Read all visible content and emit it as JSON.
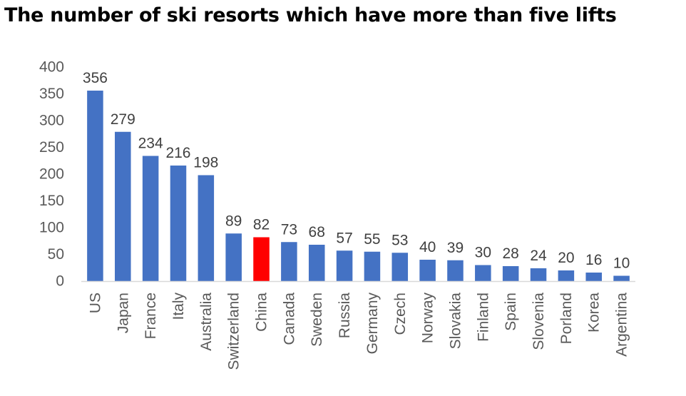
{
  "chart_data": {
    "type": "bar",
    "title": "The number of ski resorts which have more than five lifts",
    "xlabel": "",
    "ylabel": "",
    "categories": [
      "US",
      "Japan",
      "France",
      "Italy",
      "Australia",
      "Switzerland",
      "China",
      "Canada",
      "Sweden",
      "Russia",
      "Germany",
      "Czech",
      "Norway",
      "Slovakia",
      "Finland",
      "Spain",
      "Slovenia",
      "Porland",
      "Korea",
      "Argentina"
    ],
    "values": [
      356,
      279,
      234,
      216,
      198,
      89,
      82,
      73,
      68,
      57,
      55,
      53,
      40,
      39,
      30,
      28,
      24,
      20,
      16,
      10
    ],
    "ylim": [
      0,
      400
    ],
    "yticks": [
      0,
      50,
      100,
      150,
      200,
      250,
      300,
      350,
      400
    ],
    "grid": false,
    "legend": "none",
    "bar_color": "#4472C4",
    "highlight": {
      "category": "China",
      "color": "#FF0000"
    },
    "data_labels": true
  }
}
